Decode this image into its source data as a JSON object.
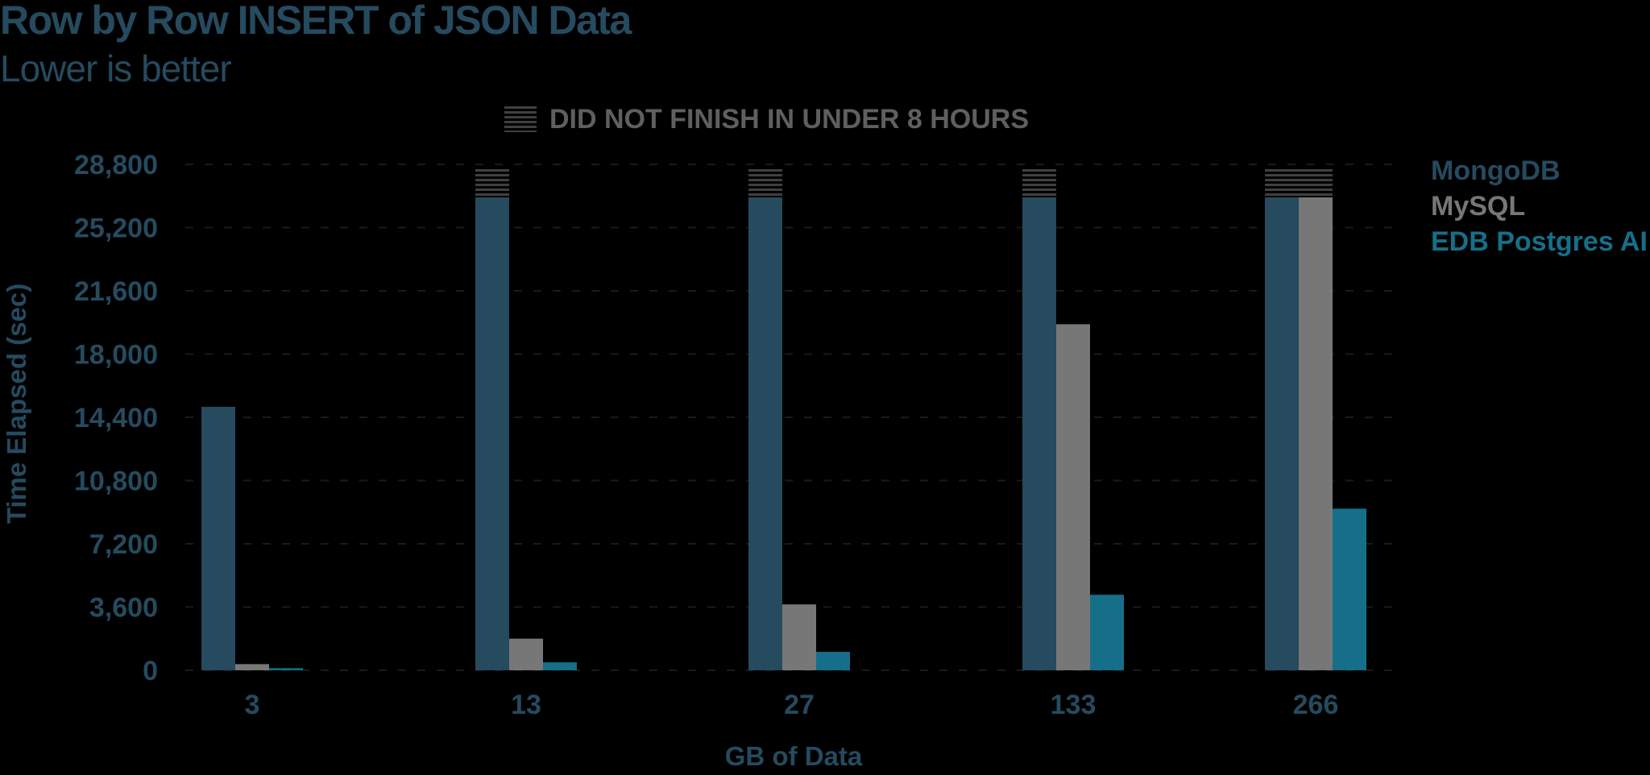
{
  "chart_data": {
    "type": "bar",
    "title": "Row by Row INSERT of JSON Data",
    "subtitle": "Lower is better",
    "xlabel": "GB of Data",
    "ylabel": "Time Elapsed (sec)",
    "ylim": [
      0,
      28800
    ],
    "yticks": [
      "0",
      "3,600",
      "7,200",
      "10,800",
      "14,400",
      "18,000",
      "21,600",
      "25,200",
      "28,800"
    ],
    "categories": [
      "3",
      "13",
      "27",
      "133",
      "266"
    ],
    "series": [
      {
        "name": "MongoDB",
        "color": "#264a5e",
        "values": [
          15000,
          28800,
          28800,
          28800,
          28800
        ],
        "dnf": [
          false,
          true,
          true,
          true,
          true
        ]
      },
      {
        "name": "MySQL",
        "color": "#777777",
        "values": [
          350,
          1800,
          3750,
          19700,
          28800
        ],
        "dnf": [
          false,
          false,
          false,
          false,
          true
        ]
      },
      {
        "name": "EDB Postgres AI",
        "color": "#166f88",
        "values": [
          120,
          450,
          1050,
          4300,
          9200
        ],
        "dnf": [
          false,
          false,
          false,
          false,
          false
        ]
      }
    ],
    "annotation": "DID NOT FINISH IN UNDER 8 HOURS",
    "grid": true,
    "legend_position": "right"
  }
}
